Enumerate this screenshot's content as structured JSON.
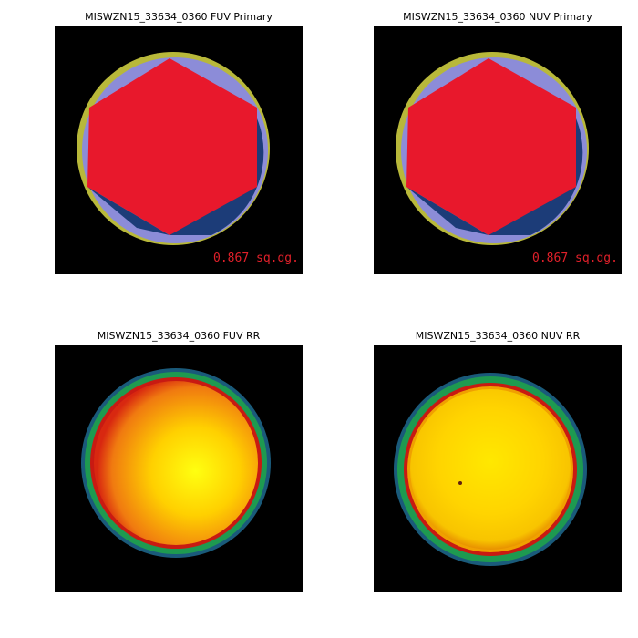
{
  "panels": [
    {
      "title": "MISWZN15_33634_0360 FUV Primary",
      "annotation": "0.867 sq.dg."
    },
    {
      "title": "MISWZN15_33634_0360 NUV Primary",
      "annotation": "0.867 sq.dg."
    },
    {
      "title": "MISWZN15_33634_0360 FUV RR"
    },
    {
      "title": "MISWZN15_33634_0360 NUV RR"
    }
  ]
}
